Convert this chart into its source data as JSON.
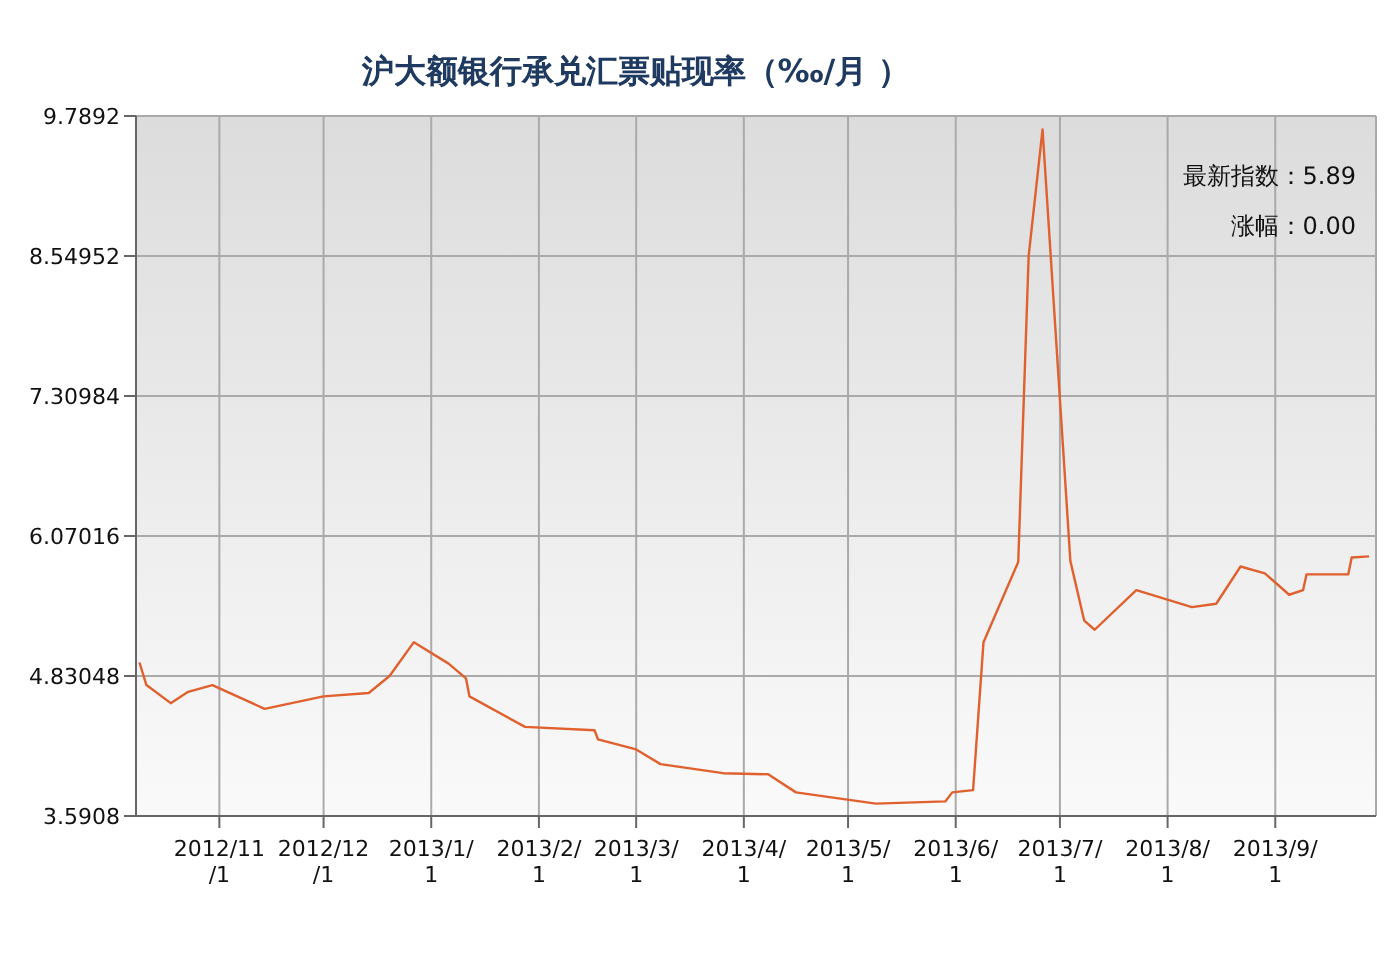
{
  "chart_data": {
    "type": "line",
    "title": "沪大额银行承兑汇票贴现率（‰/月 ）",
    "x": [
      "2012-10-09",
      "2012-10-11",
      "2012-10-18",
      "2012-10-23",
      "2012-10-30",
      "2012-11-14",
      "2012-12-01",
      "2012-12-14",
      "2012-12-20",
      "2012-12-27",
      "2013-01-06",
      "2013-01-11",
      "2013-01-12",
      "2013-01-28",
      "2013-02-17",
      "2013-02-18",
      "2013-03-01",
      "2013-03-08",
      "2013-03-26",
      "2013-04-08",
      "2013-04-16",
      "2013-05-09",
      "2013-05-29",
      "2013-05-31",
      "2013-06-06",
      "2013-06-09",
      "2013-06-19",
      "2013-06-22",
      "2013-06-26",
      "2013-07-04",
      "2013-07-08",
      "2013-07-11",
      "2013-07-23",
      "2013-08-08",
      "2013-08-15",
      "2013-08-22",
      "2013-08-29",
      "2013-09-05",
      "2013-09-09",
      "2013-09-10",
      "2013-09-22",
      "2013-09-23",
      "2013-09-28"
    ],
    "series": [
      {
        "color": "#e0602e",
        "values": [
          4.95,
          4.75,
          4.59,
          4.69,
          4.75,
          4.54,
          4.65,
          4.68,
          4.83,
          5.13,
          4.94,
          4.81,
          4.65,
          4.38,
          4.35,
          4.27,
          4.18,
          4.05,
          3.97,
          3.96,
          3.8,
          3.7,
          3.72,
          3.8,
          3.82,
          5.13,
          5.84,
          8.55,
          9.67,
          5.85,
          5.32,
          5.24,
          5.59,
          5.44,
          5.47,
          5.8,
          5.74,
          5.55,
          5.59,
          5.73,
          5.73,
          5.88,
          5.89
        ]
      }
    ],
    "xlim": [
      "2012-10-08",
      "2013-09-30"
    ],
    "xticks": [
      {
        "value": "2012-11-01",
        "label": "2012/11/1"
      },
      {
        "value": "2012-12-01",
        "label": "2012/12/1"
      },
      {
        "value": "2013-01-01",
        "label": "2013/1/1"
      },
      {
        "value": "2013-02-01",
        "label": "2013/2/1"
      },
      {
        "value": "2013-03-01",
        "label": "2013/3/1"
      },
      {
        "value": "2013-04-01",
        "label": "2013/4/1"
      },
      {
        "value": "2013-05-01",
        "label": "2013/5/1"
      },
      {
        "value": "2013-06-01",
        "label": "2013/6/1"
      },
      {
        "value": "2013-07-01",
        "label": "2013/7/1"
      },
      {
        "value": "2013-08-01",
        "label": "2013/8/1"
      },
      {
        "value": "2013-09-01",
        "label": "2013/9/1"
      }
    ],
    "ylim": [
      3.5908,
      9.7892
    ],
    "yticks": [
      3.5908,
      4.83048,
      6.07016,
      7.30984,
      8.54952,
      9.7892
    ],
    "grid": true,
    "marker": "none",
    "line_style": "solid",
    "annotations": [
      "最新指数：5.89",
      "涨幅：0.00"
    ]
  }
}
